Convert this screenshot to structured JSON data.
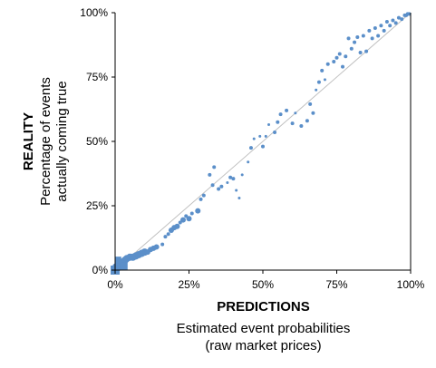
{
  "chart_data": {
    "type": "scatter",
    "title": "",
    "xlabel": "PREDICTIONS",
    "xlabel_sub": [
      "Estimated event probabilities",
      "(raw market prices)"
    ],
    "ylabel": "REALITY",
    "ylabel_sub": [
      "Percentage of events",
      "actually coming true"
    ],
    "xlim": [
      0,
      100
    ],
    "ylim": [
      0,
      100
    ],
    "x_ticks": [
      "0%",
      "25%",
      "50%",
      "75%",
      "100%"
    ],
    "y_ticks": [
      "0%",
      "25%",
      "50%",
      "75%",
      "100%"
    ],
    "grid": false,
    "legend": "none",
    "reference_line": "y = x",
    "marker_color": "#5b8fc9",
    "line_color": "#c0c0c0",
    "points": [
      {
        "x": 0.5,
        "y": 1.0,
        "size": 5
      },
      {
        "x": 1.0,
        "y": 1.5,
        "size": 4
      },
      {
        "x": 1.5,
        "y": 2.0,
        "size": 5
      },
      {
        "x": 2.0,
        "y": 2.5,
        "size": 4
      },
      {
        "x": 2.5,
        "y": 3.0,
        "size": 4
      },
      {
        "x": 3.0,
        "y": 3.5,
        "size": 4
      },
      {
        "x": 3.5,
        "y": 4.0,
        "size": 4
      },
      {
        "x": 4.0,
        "y": 4.5,
        "size": 4
      },
      {
        "x": 5.0,
        "y": 5.0,
        "size": 4
      },
      {
        "x": 6.0,
        "y": 5.0,
        "size": 4
      },
      {
        "x": 7.0,
        "y": 5.5,
        "size": 4
      },
      {
        "x": 8.0,
        "y": 6.0,
        "size": 4
      },
      {
        "x": 9.0,
        "y": 6.5,
        "size": 4
      },
      {
        "x": 10.0,
        "y": 7.0,
        "size": 4
      },
      {
        "x": 11.0,
        "y": 7.0,
        "size": 3
      },
      {
        "x": 12.0,
        "y": 8.0,
        "size": 3
      },
      {
        "x": 13.0,
        "y": 8.5,
        "size": 3
      },
      {
        "x": 14.0,
        "y": 9.0,
        "size": 3
      },
      {
        "x": 16.0,
        "y": 10.0,
        "size": 2
      },
      {
        "x": 17.0,
        "y": 13.0,
        "size": 2
      },
      {
        "x": 18.0,
        "y": 14.0,
        "size": 2
      },
      {
        "x": 19.0,
        "y": 15.5,
        "size": 3
      },
      {
        "x": 20.0,
        "y": 16.5,
        "size": 3
      },
      {
        "x": 21.0,
        "y": 17.0,
        "size": 3
      },
      {
        "x": 22.0,
        "y": 18.5,
        "size": 2
      },
      {
        "x": 23.0,
        "y": 19.5,
        "size": 3
      },
      {
        "x": 24.0,
        "y": 21.0,
        "size": 2
      },
      {
        "x": 25.0,
        "y": 20.0,
        "size": 3
      },
      {
        "x": 26.0,
        "y": 22.0,
        "size": 2
      },
      {
        "x": 28.0,
        "y": 23.0,
        "size": 3
      },
      {
        "x": 29.0,
        "y": 27.5,
        "size": 2
      },
      {
        "x": 30.0,
        "y": 29.0,
        "size": 2
      },
      {
        "x": 32.0,
        "y": 37.0,
        "size": 2
      },
      {
        "x": 33.0,
        "y": 33.0,
        "size": 2
      },
      {
        "x": 33.5,
        "y": 40.0,
        "size": 2
      },
      {
        "x": 35.0,
        "y": 31.5,
        "size": 2
      },
      {
        "x": 36.0,
        "y": 32.5,
        "size": 2
      },
      {
        "x": 38.0,
        "y": 34.0,
        "size": 1.5
      },
      {
        "x": 39.0,
        "y": 36.0,
        "size": 2
      },
      {
        "x": 40.0,
        "y": 35.5,
        "size": 2
      },
      {
        "x": 41.0,
        "y": 31.0,
        "size": 1.5
      },
      {
        "x": 42.0,
        "y": 28.0,
        "size": 1.5
      },
      {
        "x": 43.0,
        "y": 37.0,
        "size": 1.5
      },
      {
        "x": 45.0,
        "y": 42.0,
        "size": 1.5
      },
      {
        "x": 46.0,
        "y": 47.5,
        "size": 2
      },
      {
        "x": 47.0,
        "y": 51.0,
        "size": 1.5
      },
      {
        "x": 49.0,
        "y": 52.0,
        "size": 1.5
      },
      {
        "x": 50.0,
        "y": 48.0,
        "size": 2
      },
      {
        "x": 51.0,
        "y": 52.0,
        "size": 1.5
      },
      {
        "x": 52.0,
        "y": 56.5,
        "size": 1.5
      },
      {
        "x": 54.0,
        "y": 53.5,
        "size": 2
      },
      {
        "x": 55.0,
        "y": 57.5,
        "size": 2
      },
      {
        "x": 56.0,
        "y": 60.5,
        "size": 2
      },
      {
        "x": 58.0,
        "y": 62.0,
        "size": 2
      },
      {
        "x": 60.0,
        "y": 57.0,
        "size": 2
      },
      {
        "x": 61.0,
        "y": 61.0,
        "size": 1.5
      },
      {
        "x": 63.0,
        "y": 56.0,
        "size": 2
      },
      {
        "x": 65.0,
        "y": 58.0,
        "size": 2
      },
      {
        "x": 66.0,
        "y": 64.5,
        "size": 2
      },
      {
        "x": 67.0,
        "y": 61.0,
        "size": 2
      },
      {
        "x": 68.0,
        "y": 70.0,
        "size": 1.5
      },
      {
        "x": 69.0,
        "y": 73.0,
        "size": 2
      },
      {
        "x": 70.0,
        "y": 77.5,
        "size": 2
      },
      {
        "x": 71.0,
        "y": 74.0,
        "size": 1.5
      },
      {
        "x": 72.0,
        "y": 80.0,
        "size": 2
      },
      {
        "x": 74.0,
        "y": 81.0,
        "size": 2
      },
      {
        "x": 75.0,
        "y": 82.5,
        "size": 2
      },
      {
        "x": 76.0,
        "y": 84.0,
        "size": 2
      },
      {
        "x": 77.0,
        "y": 79.0,
        "size": 2
      },
      {
        "x": 78.0,
        "y": 83.0,
        "size": 2
      },
      {
        "x": 79.0,
        "y": 90.0,
        "size": 2
      },
      {
        "x": 80.0,
        "y": 86.0,
        "size": 2
      },
      {
        "x": 81.0,
        "y": 88.5,
        "size": 2
      },
      {
        "x": 82.0,
        "y": 90.5,
        "size": 2
      },
      {
        "x": 83.0,
        "y": 84.5,
        "size": 2
      },
      {
        "x": 84.0,
        "y": 91.0,
        "size": 2
      },
      {
        "x": 85.0,
        "y": 85.0,
        "size": 2
      },
      {
        "x": 86.0,
        "y": 93.0,
        "size": 2
      },
      {
        "x": 87.0,
        "y": 90.0,
        "size": 2
      },
      {
        "x": 88.0,
        "y": 94.0,
        "size": 2
      },
      {
        "x": 89.0,
        "y": 91.0,
        "size": 2
      },
      {
        "x": 90.0,
        "y": 95.0,
        "size": 2
      },
      {
        "x": 91.0,
        "y": 93.0,
        "size": 2
      },
      {
        "x": 92.0,
        "y": 96.5,
        "size": 2
      },
      {
        "x": 93.0,
        "y": 95.0,
        "size": 2
      },
      {
        "x": 94.0,
        "y": 97.0,
        "size": 2
      },
      {
        "x": 95.0,
        "y": 96.0,
        "size": 2
      },
      {
        "x": 96.0,
        "y": 98.0,
        "size": 2
      },
      {
        "x": 97.0,
        "y": 97.5,
        "size": 2
      },
      {
        "x": 98.0,
        "y": 99.0,
        "size": 2
      },
      {
        "x": 98.5,
        "y": 99.0,
        "size": 2
      },
      {
        "x": 99.0,
        "y": 99.5,
        "size": 2
      },
      {
        "x": 99.5,
        "y": 99.5,
        "size": 2
      }
    ]
  }
}
